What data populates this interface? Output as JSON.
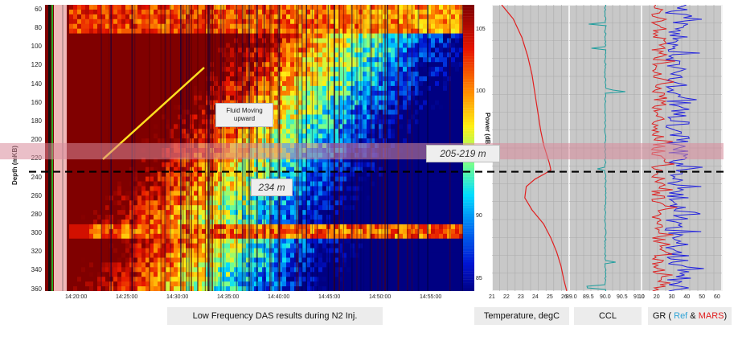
{
  "chart_data": [
    {
      "type": "heatmap",
      "title": "",
      "ylabel": "Depth (mKB)",
      "y_ticks": [
        60,
        80,
        100,
        120,
        140,
        160,
        180,
        200,
        220,
        240,
        260,
        280,
        300,
        320,
        340,
        360
      ],
      "ylim": [
        360,
        55
      ],
      "x_ticks": [
        "14:20:00",
        "14:25:00",
        "14:30:00",
        "14:35:00",
        "14:40:00",
        "14:45:00",
        "14:50:00",
        "14:55:00"
      ],
      "colorbar": {
        "label": "Power (dB/Hz)",
        "ticks": [
          105,
          100,
          95,
          90,
          85
        ],
        "range": [
          84,
          107
        ]
      },
      "caption": "Low Frequency DAS results during N2 Inj.",
      "annotation": "Fluid Moving upward"
    },
    {
      "type": "line",
      "series_name": "Temperature",
      "xlabel": "Temperature, degC",
      "x_ticks": [
        21,
        22,
        23,
        24,
        25,
        26
      ],
      "xlim": [
        21,
        26
      ],
      "depth": [
        55,
        70,
        90,
        110,
        130,
        150,
        170,
        190,
        205,
        215,
        225,
        232,
        236,
        242,
        250,
        262,
        275,
        290,
        305,
        320,
        335,
        350,
        362
      ],
      "values": [
        21.5,
        22.3,
        22.9,
        23.3,
        23.6,
        23.8,
        24.0,
        24.2,
        24.4,
        24.6,
        24.8,
        24.9,
        24.5,
        23.8,
        23.2,
        23.1,
        23.6,
        24.4,
        24.9,
        25.3,
        25.6,
        25.8,
        26.0
      ]
    },
    {
      "type": "line",
      "series_name": "CCL",
      "xlabel": "CCL",
      "x_ticks": [
        89.0,
        89.5,
        90.0,
        90.5,
        91.0
      ],
      "xlim": [
        89.0,
        91.0
      ],
      "baseline": 90.0
    },
    {
      "type": "line",
      "series": [
        {
          "name": "Ref",
          "color": "#2222dd"
        },
        {
          "name": "MARS",
          "color": "#dd2222"
        }
      ],
      "xlabel_parts": [
        "GR ( ",
        "Ref",
        " & ",
        "MARS",
        ")"
      ],
      "x_ticks": [
        10,
        20,
        30,
        40,
        50,
        60
      ],
      "xlim": [
        10,
        60
      ]
    }
  ],
  "annotations": {
    "band_label": "205-219 m",
    "line_label": "234 m"
  },
  "colors": {
    "band": "#d98a9a",
    "ccl_line": "#1f9e9e",
    "temp_line": "#e02020",
    "ref_color": "#2ea3d6",
    "mars_color": "#e02020"
  }
}
